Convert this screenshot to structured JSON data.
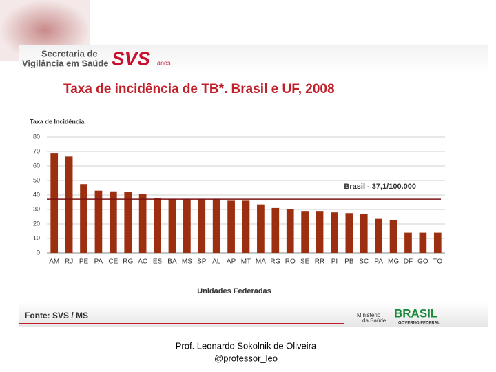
{
  "header": {
    "org": [
      "Secretaria de",
      "Vigilância em Saúde"
    ],
    "logo": "SVS",
    "logo_suffix": "anos"
  },
  "chart_data": {
    "type": "bar",
    "title": "Taxa de incidência de TB*. Brasil e UF, 2008",
    "y_label": "Taxa de Incidência",
    "x_label": "Unidades Federadas",
    "categories": [
      "AM",
      "RJ",
      "PE",
      "PA",
      "CE",
      "RG",
      "AC",
      "ES",
      "BA",
      "MS",
      "SP",
      "AL",
      "AP",
      "MT",
      "MA",
      "RG",
      "RO",
      "SE",
      "RR",
      "PI",
      "PB",
      "SC",
      "PA",
      "MG",
      "DF",
      "GO",
      "TO"
    ],
    "values": [
      69,
      66.5,
      47.5,
      43,
      42.5,
      42,
      40.5,
      38,
      37,
      37,
      37,
      37,
      36,
      36,
      33.5,
      31,
      30,
      28.5,
      28.5,
      28,
      27.5,
      27,
      23.5,
      22.5,
      14,
      14,
      14
    ],
    "color": "#9c2f10",
    "ylim": [
      0,
      80
    ],
    "yticks": [
      0,
      10,
      20,
      30,
      40,
      50,
      60,
      70,
      80
    ],
    "grid": true,
    "reference_line": {
      "value": 37.1,
      "label": "Brasil - 37,1/100.000",
      "color": "#7a1414"
    }
  },
  "footer": {
    "source": "Fonte: SVS / MS",
    "ministry": [
      "Ministério",
      "da Saúde"
    ],
    "brand": "BRASIL",
    "government": "GOVERNO FEDERAL",
    "author": "Prof. Leonardo Sokolnik de Oliveira",
    "handle": "@professor_leo"
  }
}
